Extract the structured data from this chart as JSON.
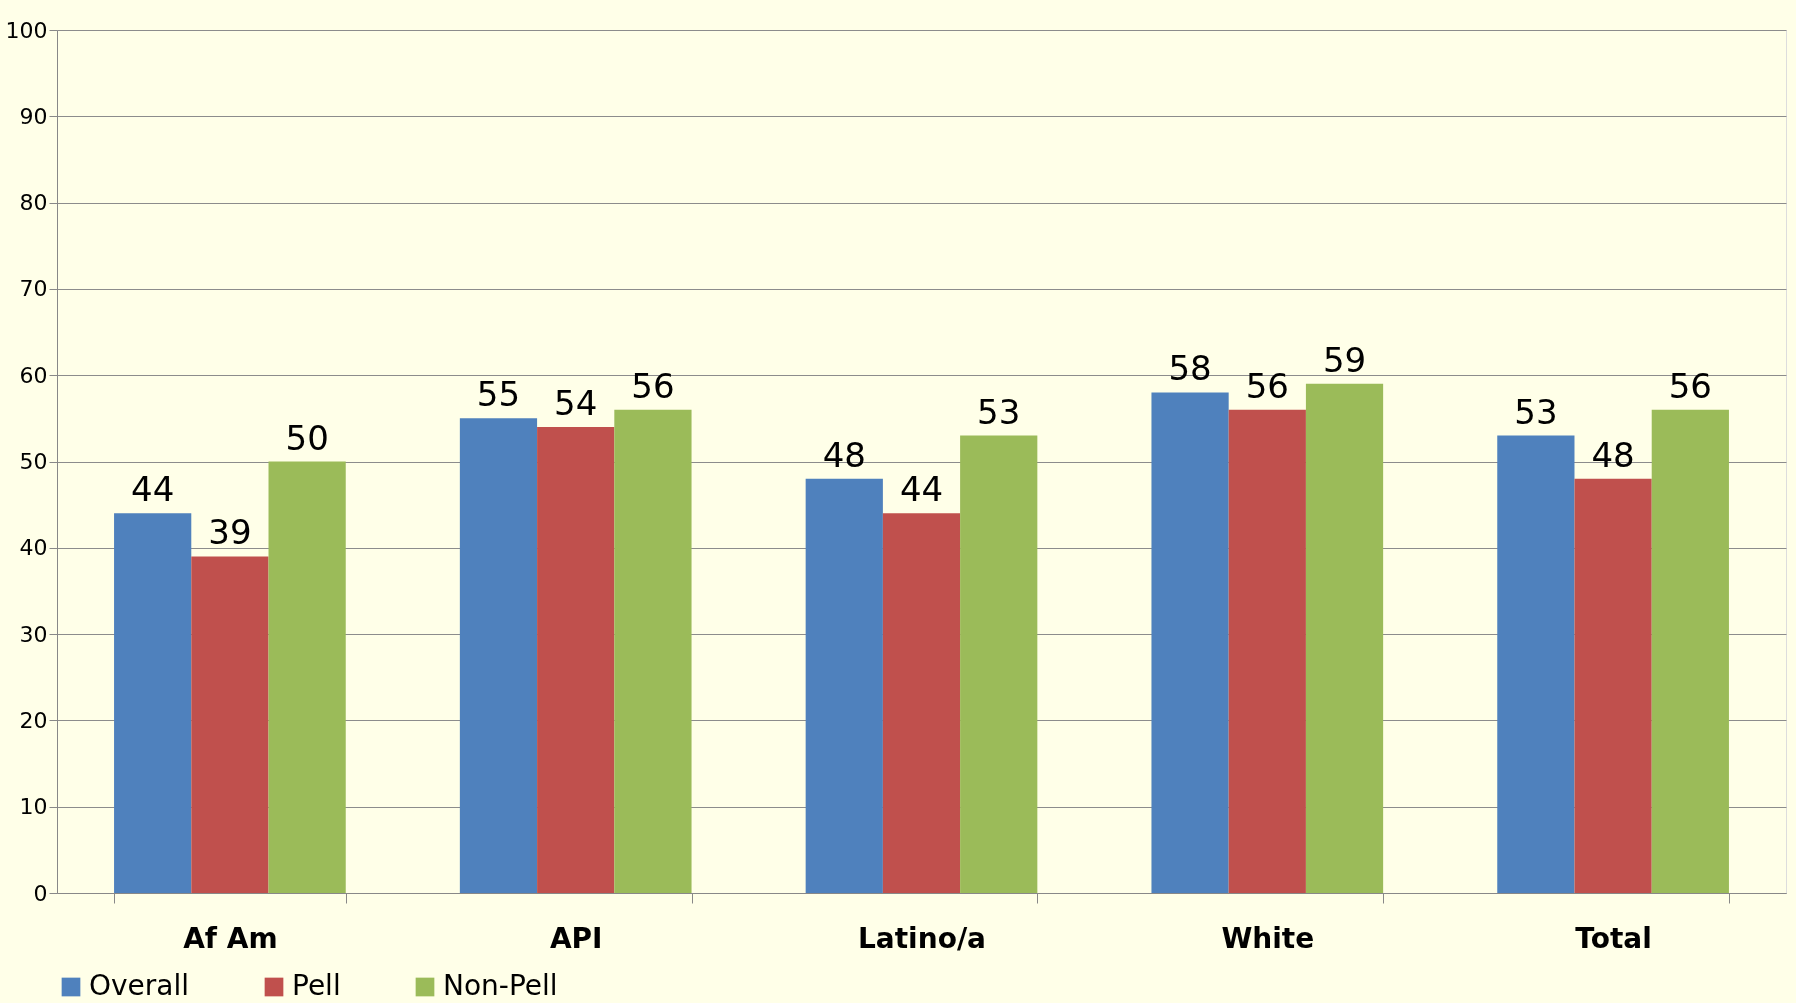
{
  "chart_data": {
    "type": "bar",
    "categories": [
      "Af Am",
      "API",
      "Latino/a",
      "White",
      "Total"
    ],
    "series": [
      {
        "name": "Overall",
        "color": "#4f81bd",
        "values": [
          44,
          55,
          48,
          58,
          53
        ]
      },
      {
        "name": "Pell",
        "color": "#c0504d",
        "values": [
          39,
          54,
          44,
          56,
          48
        ]
      },
      {
        "name": "Non-Pell",
        "color": "#9bbb59",
        "values": [
          50,
          56,
          53,
          59,
          56
        ]
      }
    ],
    "ylim": [
      0,
      100
    ],
    "yticks": [
      0,
      10,
      20,
      30,
      40,
      50,
      60,
      70,
      80,
      90,
      100
    ],
    "grid": "y",
    "legend": "bottom",
    "data_labels": true
  }
}
